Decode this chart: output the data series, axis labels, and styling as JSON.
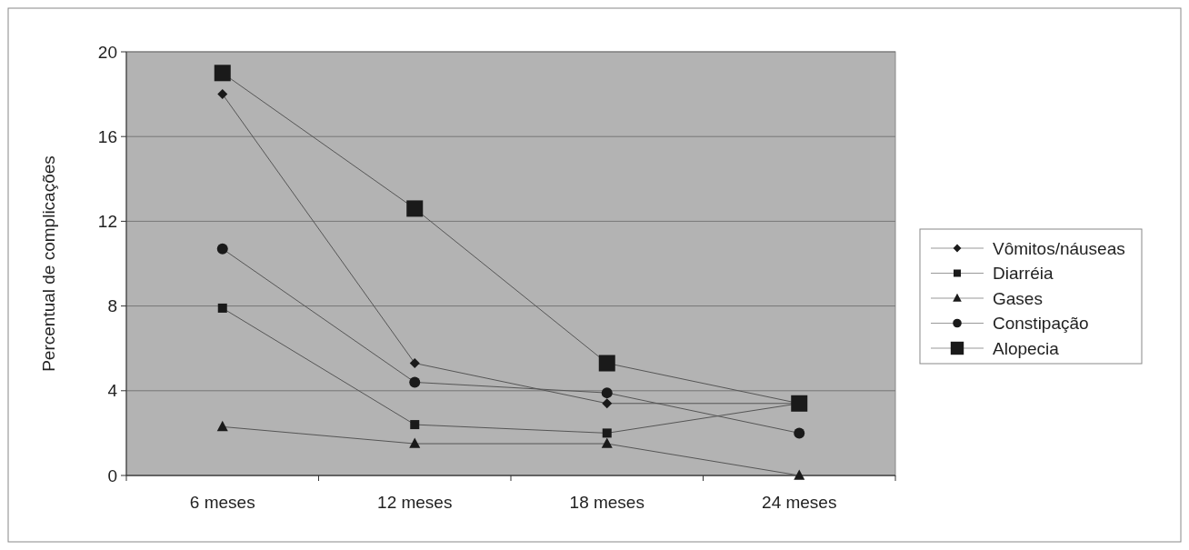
{
  "chart_data": {
    "type": "line",
    "ylabel": "Percentual de complicações",
    "categories": [
      "6 meses",
      "12 meses",
      "18 meses",
      "24 meses"
    ],
    "series": [
      {
        "name": "Vômitos/náuseas",
        "color": "#1a1a1a",
        "marker": "diamond",
        "values": [
          18,
          5.3,
          3.4,
          3.4
        ]
      },
      {
        "name": "Diarréia",
        "color": "#1a1a1a",
        "marker": "square",
        "values": [
          7.9,
          2.4,
          2.0,
          3.4
        ]
      },
      {
        "name": "Gases",
        "color": "#1a1a1a",
        "marker": "triangle",
        "values": [
          2.3,
          1.5,
          1.5,
          0
        ]
      },
      {
        "name": "Constipação",
        "color": "#1a1a1a",
        "marker": "circle",
        "values": [
          10.7,
          4.4,
          3.9,
          2.0
        ]
      },
      {
        "name": "Alopecia",
        "color": "#1a1a1a",
        "marker": "square",
        "values": [
          19,
          12.6,
          5.3,
          3.4
        ]
      }
    ],
    "ylim": [
      0,
      20
    ],
    "yticks": [
      0,
      4,
      8,
      12,
      16,
      20
    ],
    "grid": "y",
    "legend": "right"
  }
}
